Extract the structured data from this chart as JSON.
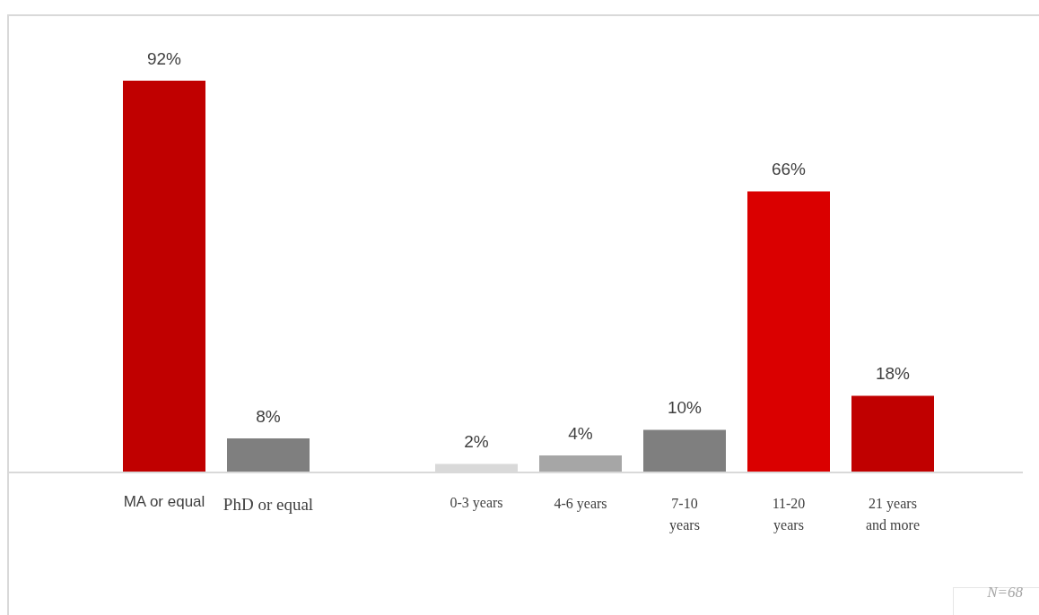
{
  "chart_data": {
    "type": "bar",
    "categories": [
      "MA or equal",
      "PhD or equal",
      null,
      "0-3 years",
      "4-6 years",
      "7-10 years",
      "11-20 years",
      "21 years and more"
    ],
    "values": [
      92,
      8,
      null,
      2,
      4,
      10,
      66,
      18
    ],
    "colors": [
      "#c00000",
      "#7f7f7f",
      "#ffffff",
      "#d9d9d9",
      "#a6a6a6",
      "#7f7f7f",
      "#da0000",
      "#c00000"
    ],
    "value_labels": [
      "92%",
      "8%",
      null,
      "2%",
      "4%",
      "10%",
      "66%",
      "18%"
    ],
    "annotations": [
      "N=68"
    ]
  }
}
